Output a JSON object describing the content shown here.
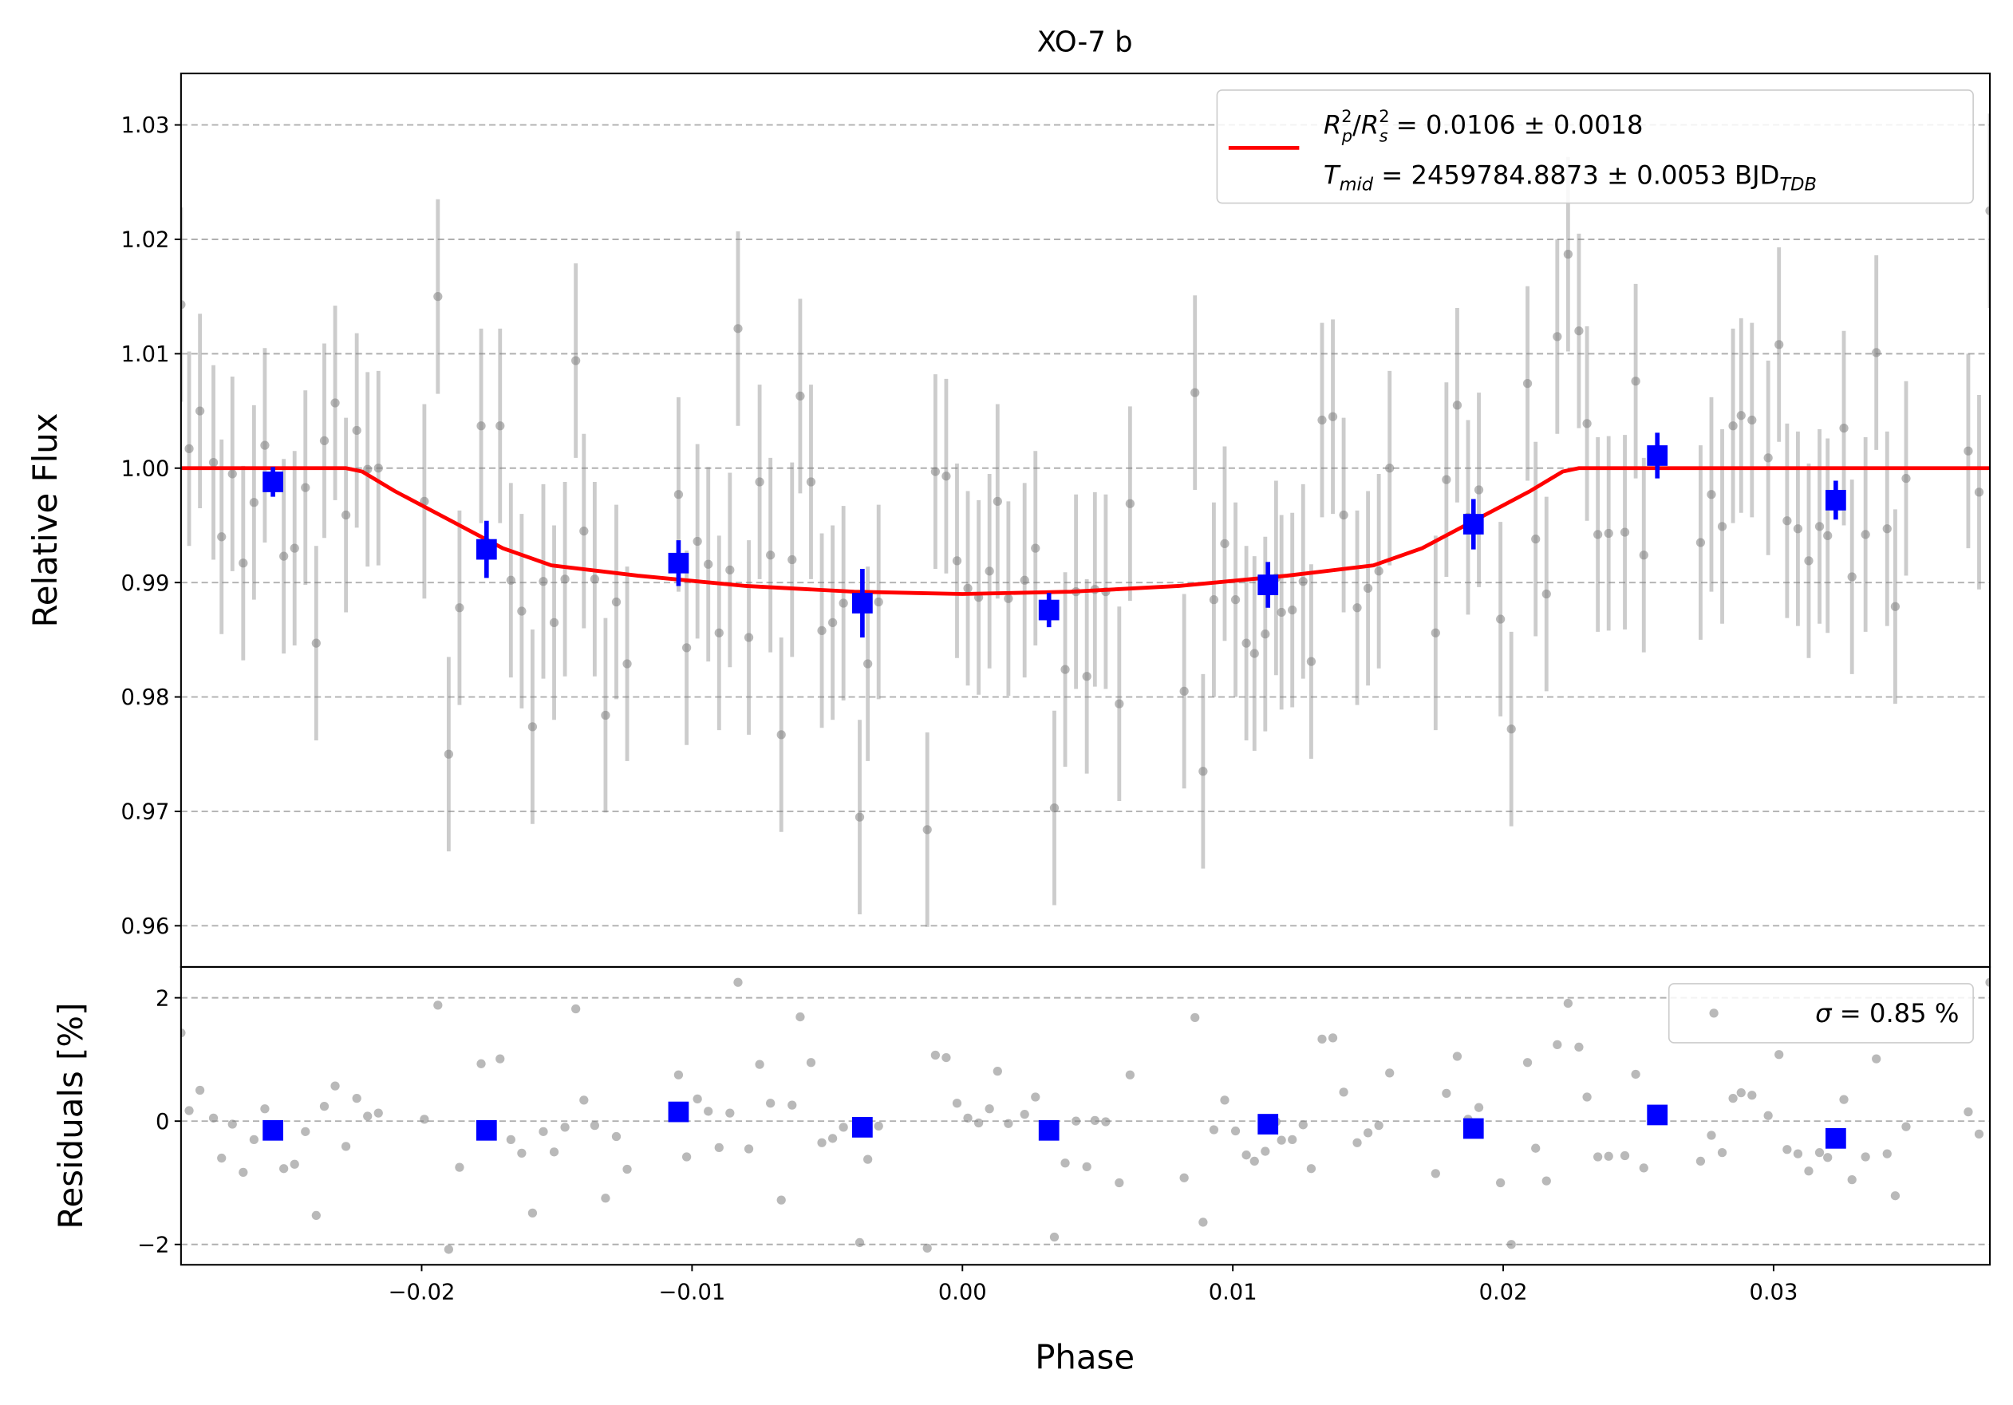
{
  "chart_data": [
    {
      "type": "scatter",
      "title": "XO-7 b",
      "ylabel": "Relative Flux",
      "xlim": [
        -0.0289,
        0.038
      ],
      "ylim": [
        0.9564,
        1.0345
      ],
      "yticks": [
        0.96,
        0.97,
        0.98,
        0.99,
        {
          "value": 1.0,
          "label": "1.00"
        },
        1.01,
        1.02,
        1.03
      ],
      "grid": true,
      "series": [
        {
          "color": "#808080",
          "error": 0.0085,
          "x": [
            -0.0289,
            -0.0286,
            -0.0282,
            -0.0277,
            -0.0274,
            -0.027,
            -0.0266,
            -0.0262,
            -0.0258,
            -0.0251,
            -0.0247,
            -0.0243,
            -0.0239,
            -0.0236,
            -0.0232,
            -0.0228,
            -0.0224,
            -0.022,
            -0.0216,
            -0.0199,
            -0.0194,
            -0.019,
            -0.0186,
            -0.0178,
            -0.0171,
            -0.0167,
            -0.0163,
            -0.0159,
            -0.0155,
            -0.0151,
            -0.0147,
            -0.0143,
            -0.014,
            -0.0136,
            -0.0132,
            -0.0128,
            -0.0124,
            -0.0105,
            -0.0102,
            -0.0098,
            -0.0094,
            -0.009,
            -0.0086,
            -0.0083,
            -0.0079,
            -0.0075,
            -0.0071,
            -0.0067,
            -0.0063,
            -0.006,
            -0.0056,
            -0.0052,
            -0.0048,
            -0.0044,
            -0.0038,
            -0.0035,
            -0.0031,
            -0.0013,
            -0.001,
            -0.0006,
            -0.0002,
            0.0002,
            0.0006,
            0.001,
            0.0013,
            0.0017,
            0.0023,
            0.0027,
            0.0034,
            0.0038,
            0.0042,
            0.0046,
            0.0049,
            0.0053,
            0.0058,
            0.0062,
            0.0082,
            0.0086,
            0.0089,
            0.0093,
            0.0097,
            0.0101,
            0.0105,
            0.0108,
            0.0112,
            0.0116,
            0.0118,
            0.0122,
            0.0126,
            0.0129,
            0.0133,
            0.0137,
            0.0141,
            0.0146,
            0.015,
            0.0154,
            0.0158,
            0.0175,
            0.0179,
            0.0183,
            0.0187,
            0.0191,
            0.0199,
            0.0203,
            0.0209,
            0.0212,
            0.0216,
            0.022,
            0.0224,
            0.0228,
            0.0231,
            0.0235,
            0.0239,
            0.0245,
            0.0249,
            0.0252,
            0.0273,
            0.0277,
            0.0281,
            0.0285,
            0.0288,
            0.0292,
            0.0298,
            0.0302,
            0.0305,
            0.0309,
            0.0313,
            0.0317,
            0.032,
            0.0326,
            0.0329,
            0.0334,
            0.0338,
            0.0342,
            0.0345,
            0.0349,
            0.0372,
            0.0376,
            0.038
          ],
          "values": [
            1.0143,
            1.0017,
            1.005,
            1.0005,
            0.994,
            0.9995,
            0.9917,
            0.997,
            1.002,
            0.9923,
            0.993,
            0.9983,
            0.9847,
            1.0024,
            1.0057,
            0.9959,
            1.0033,
            0.9999,
            1.0,
            0.9971,
            1.015,
            0.975,
            0.9878,
            1.0037,
            1.0037,
            0.9902,
            0.9875,
            0.9774,
            0.9901,
            0.9865,
            0.9903,
            1.0094,
            0.9945,
            0.9903,
            0.9784,
            0.9883,
            0.9829,
            0.9977,
            0.9843,
            0.9936,
            0.9916,
            0.9856,
            0.9911,
            1.0122,
            0.9852,
            0.9988,
            0.9924,
            0.9767,
            0.992,
            1.0063,
            0.9988,
            0.9858,
            0.9865,
            0.9882,
            0.9695,
            0.9829,
            0.9883,
            0.9684,
            0.9997,
            0.9993,
            0.9919,
            0.9895,
            0.9887,
            0.991,
            0.9971,
            0.9886,
            0.9902,
            0.993,
            0.9703,
            0.9824,
            0.9892,
            0.9818,
            0.9894,
            0.9892,
            0.9794,
            0.9969,
            0.9805,
            1.0066,
            0.9735,
            0.9885,
            0.9934,
            0.9885,
            0.9847,
            0.9838,
            0.9855,
            0.9904,
            0.9874,
            0.9876,
            0.9901,
            0.9831,
            1.0042,
            1.0045,
            0.9959,
            0.9878,
            0.9895,
            0.991,
            1.0,
            0.9856,
            0.999,
            1.0055,
            0.9957,
            0.9981,
            0.9868,
            0.9772,
            1.0074,
            0.9938,
            0.989,
            1.0115,
            1.0187,
            1.012,
            1.0039,
            0.9942,
            0.9943,
            0.9944,
            1.0076,
            0.9924,
            0.9935,
            0.9977,
            0.9949,
            1.0037,
            1.0046,
            1.0042,
            1.0009,
            1.0108,
            0.9954,
            0.9947,
            0.9919,
            0.9949,
            0.9941,
            1.0035,
            0.9905,
            0.9942,
            1.0101,
            0.9947,
            0.9879,
            0.9991,
            1.0015,
            0.9979,
            1.0225
          ]
        },
        {
          "color": "#0000ff",
          "x": [
            -0.0255,
            -0.0176,
            -0.0105,
            -0.0037,
            0.0032,
            0.0113,
            0.0189,
            0.0257,
            0.0323
          ],
          "values": [
            0.9988,
            0.9929,
            0.9917,
            0.9882,
            0.9876,
            0.9898,
            0.9951,
            1.0011,
            0.9972
          ],
          "errors": [
            0.0013,
            0.0025,
            0.002,
            0.003,
            0.0015,
            0.002,
            0.0022,
            0.002,
            0.0017
          ]
        }
      ],
      "model": {
        "color": "#ff0000",
        "x": [
          -0.0289,
          -0.0228,
          -0.0222,
          -0.021,
          -0.019,
          -0.017,
          -0.0152,
          -0.012,
          -0.008,
          -0.004,
          0,
          0.004,
          0.008,
          0.012,
          0.0152,
          0.017,
          0.019,
          0.021,
          0.0222,
          0.0228,
          0.038
        ],
        "values": [
          1.0,
          1.0,
          0.9997,
          0.998,
          0.9955,
          0.993,
          0.9915,
          0.9906,
          0.9897,
          0.9892,
          0.989,
          0.9892,
          0.9897,
          0.9906,
          0.9915,
          0.993,
          0.9955,
          0.998,
          0.9997,
          1.0,
          1.0
        ]
      },
      "legend": {
        "line1": [
          "R",
          "2",
          "p",
          "/",
          "R",
          "2",
          "s",
          " = 0.0106 ± 0.0018"
        ],
        "line2": [
          "T",
          "mid",
          " = 2459784.8873 ± 0.0053 BJD",
          "TDB"
        ]
      }
    },
    {
      "type": "scatter",
      "ylabel": "Residuals [%]",
      "xlabel": "Phase",
      "xlim": [
        -0.0289,
        0.038
      ],
      "ylim": [
        -2.33,
        2.5
      ],
      "xticks": [
        {
          "value": -0.02,
          "label": "−0.02"
        },
        {
          "value": -0.01,
          "label": "−0.01"
        },
        {
          "value": 0,
          "label": "0.00"
        },
        0.01,
        0.02,
        0.03
      ],
      "yticks": [
        {
          "value": -2,
          "label": "−2"
        },
        0,
        2
      ],
      "grid": true,
      "series": [
        {
          "color": "#808080",
          "values": [
            1.43,
            0.17,
            0.5,
            0.05,
            -0.6,
            -0.05,
            -0.83,
            -0.3,
            0.2,
            -0.77,
            -0.7,
            -0.17,
            -1.53,
            0.24,
            0.57,
            -0.41,
            0.37,
            0.08,
            0.13,
            0.03,
            1.88,
            -2.08,
            -0.75,
            0.93,
            1.01,
            -0.3,
            -0.52,
            -1.49,
            -0.17,
            -0.5,
            -0.1,
            1.82,
            0.34,
            -0.07,
            -1.25,
            -0.25,
            -0.78,
            0.75,
            -0.58,
            0.36,
            0.16,
            -0.43,
            0.13,
            2.25,
            -0.45,
            0.92,
            0.29,
            -1.28,
            0.26,
            1.69,
            0.95,
            -0.35,
            -0.28,
            -0.1,
            -1.97,
            -0.62,
            -0.08,
            -2.06,
            1.07,
            1.03,
            0.29,
            0.05,
            -0.03,
            0.2,
            0.81,
            -0.04,
            0.11,
            0.39,
            -1.88,
            -0.68,
            0.0,
            -0.74,
            0.01,
            -0.01,
            -1.0,
            0.75,
            -0.92,
            1.68,
            -1.64,
            -0.14,
            0.34,
            -0.16,
            -0.55,
            -0.65,
            -0.49,
            -0.01,
            -0.31,
            -0.3,
            -0.06,
            -0.77,
            1.33,
            1.35,
            0.47,
            -0.35,
            -0.19,
            -0.07,
            0.78,
            -0.85,
            0.45,
            1.05,
            0.03,
            0.22,
            -1.0,
            -2.0,
            0.95,
            -0.44,
            -0.97,
            1.24,
            1.91,
            1.2,
            0.39,
            -0.58,
            -0.57,
            -0.56,
            0.76,
            -0.76,
            -0.65,
            -0.23,
            -0.51,
            0.37,
            0.46,
            0.42,
            0.09,
            1.08,
            -0.46,
            -0.53,
            -0.81,
            -0.51,
            -0.59,
            0.35,
            -0.95,
            -0.58,
            1.01,
            -0.53,
            -1.21,
            -0.09,
            0.15,
            -0.21,
            2.25
          ]
        },
        {
          "color": "#0000ff",
          "values": [
            -0.15,
            -0.15,
            0.15,
            -0.1,
            -0.15,
            -0.05,
            -0.12,
            0.1,
            -0.28
          ]
        }
      ],
      "legend": [
        "σ",
        " = 0.85 %"
      ]
    }
  ]
}
